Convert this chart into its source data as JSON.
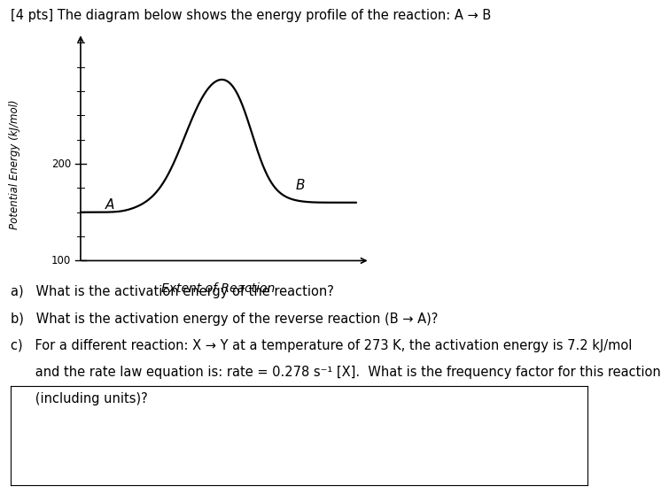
{
  "title": "[4 pts] The diagram below shows the energy profile of the reaction: A → B",
  "xlabel": "Extent of Reaction",
  "ylabel": "Potential Energy (kJ/mol)",
  "y_tick_100_label": "100",
  "y_tick_200_label": "200",
  "label_A": "A",
  "label_B": "B",
  "bg_color": "#ffffff",
  "line_color": "#000000",
  "reactant_level": 150,
  "product_level": 160,
  "peak_level": 310,
  "q_a": "a)   What is the activation energy of the reaction?",
  "q_b": "b)   What is the activation energy of the reverse reaction (B → A)?",
  "q_c1": "c)   For a different reaction: X → Y at a temperature of 273 K, the activation energy is 7.2 kJ/mol",
  "q_c2": "      and the rate law equation is: rate = 0.278 s⁻¹ [X].  What is the frequency factor for this reaction",
  "q_c3": "      (including units)?"
}
